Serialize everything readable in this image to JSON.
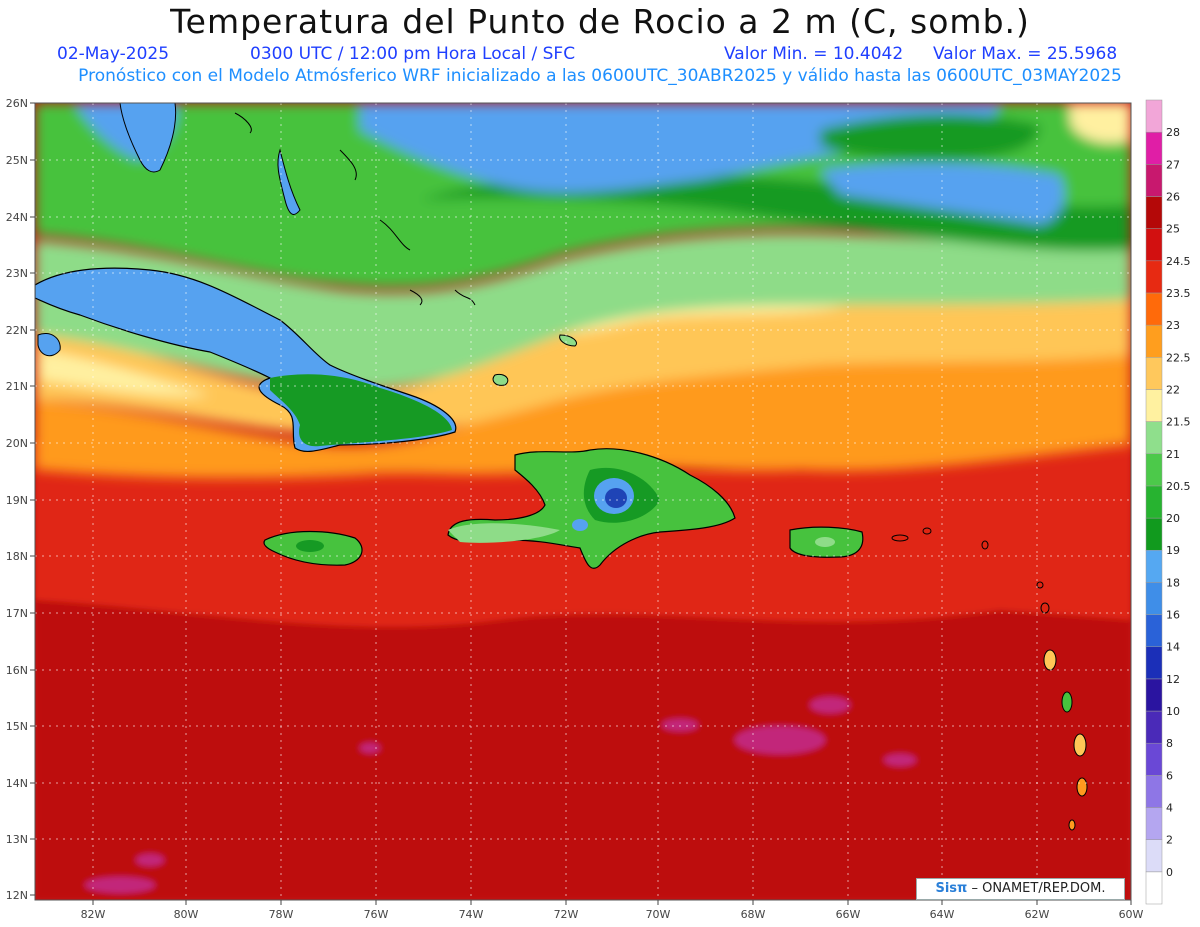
{
  "header": {
    "title": "Temperatura del Punto de Rocio a 2 m (C, somb.)",
    "date": "02-May-2025",
    "time": "0300 UTC / 12:00 pm Hora Local / SFC",
    "min_value": "Valor Min. = 10.4042",
    "max_value": "Valor Max. = 25.5968",
    "forecast_note": "Pronóstico con el Modelo Atmósferico WRF inicializado a las 0600UTC_30ABR2025 y válido hasta las  0600UTC_03MAY2025"
  },
  "axes": {
    "lat_labels": [
      "26N",
      "25N",
      "24N",
      "23N",
      "22N",
      "21N",
      "20N",
      "19N",
      "18N",
      "17N",
      "16N",
      "15N",
      "14N",
      "13N",
      "12N"
    ],
    "lon_labels": [
      "82W",
      "80W",
      "78W",
      "76W",
      "74W",
      "72W",
      "70W",
      "68W",
      "66W",
      "64W",
      "62W",
      "60W"
    ]
  },
  "colorbar": {
    "labels": [
      "0",
      "2",
      "4",
      "6",
      "8",
      "10",
      "12",
      "14",
      "16",
      "18",
      "19",
      "20",
      "20.5",
      "21",
      "21.5",
      "22",
      "22.5",
      "23",
      "23.5",
      "24.5",
      "25",
      "26",
      "27",
      "28"
    ],
    "colors": [
      "#ffffff",
      "#dcdcf8",
      "#b4a6f0",
      "#8e76e6",
      "#6a48d6",
      "#4a2ab8",
      "#2a14a0",
      "#1b2fb8",
      "#2a62d8",
      "#3f8ee8",
      "#55a8f2",
      "#119a1e",
      "#27b330",
      "#4cc94a",
      "#8fdf8c",
      "#fff1a0",
      "#ffc85c",
      "#ff9e1e",
      "#ff6a0a",
      "#e72a12",
      "#d21010",
      "#b40808",
      "#c8186e",
      "#e01ea6",
      "#f2a6d8"
    ]
  },
  "map_palette": {
    "ocean_warm_dark": "#c51010",
    "ocean_warm": "#e02512",
    "orange": "#ff9a1f",
    "light_orange": "#ffc657",
    "yellow": "#fff0a0",
    "light_green": "#8edc88",
    "green": "#47c23e",
    "dark_green": "#169a24",
    "blue": "#56a2f0",
    "dark_blue": "#1f44b6",
    "magenta": "#c2287a",
    "coast": "#000000"
  },
  "credit": {
    "brand": "Sisπ",
    "text": "– ONAMET/REP.DOM."
  }
}
